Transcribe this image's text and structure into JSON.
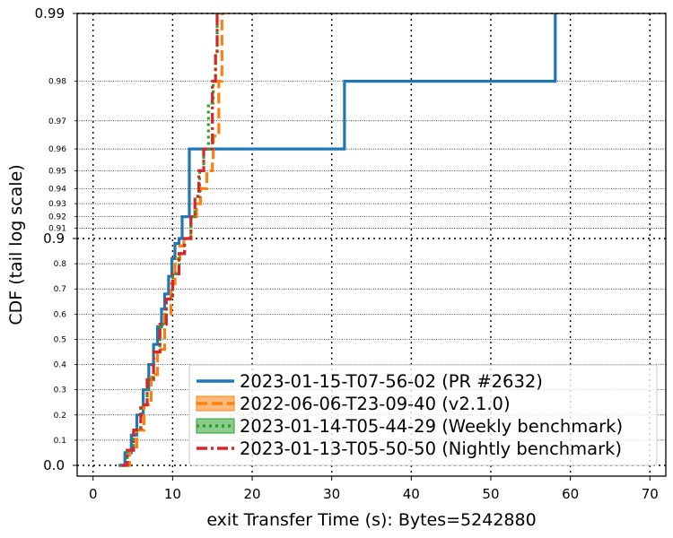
{
  "chart_data": {
    "type": "line",
    "xlabel": "exit Transfer Time (s): Bytes=5242880",
    "ylabel": "CDF (tail log scale)",
    "xlim": [
      -2,
      72
    ],
    "xticks": [
      0,
      10,
      20,
      30,
      40,
      50,
      60,
      70
    ],
    "y_scale": "tail-log (linear 0-0.9, log-of-tail 0.9-0.99)",
    "yticks_major": [
      0.0,
      0.9,
      0.99
    ],
    "yticks_minor": [
      0.1,
      0.2,
      0.3,
      0.4,
      0.5,
      0.6,
      0.7,
      0.8,
      0.91,
      0.92,
      0.93,
      0.94,
      0.95,
      0.96,
      0.97,
      0.98
    ],
    "ylim": [
      0.0,
      0.99
    ],
    "grid": true,
    "legend_position": "bottom-right",
    "series": [
      {
        "name": "2023-01-15-T07-56-02 (PR #2632)",
        "color": "#1f77b4",
        "style": "solid",
        "x": [
          3.2,
          4.0,
          4.8,
          5.5,
          6.3,
          7.0,
          7.6,
          8.1,
          8.6,
          9.0,
          9.5,
          9.9,
          10.3,
          10.8,
          11.2,
          12.0,
          12.1,
          31.5,
          31.6,
          58.0,
          58.1
        ],
        "y": [
          0.0,
          0.05,
          0.12,
          0.2,
          0.3,
          0.4,
          0.48,
          0.55,
          0.62,
          0.68,
          0.75,
          0.82,
          0.88,
          0.9,
          0.92,
          0.92,
          0.96,
          0.96,
          0.98,
          0.98,
          0.99
        ]
      },
      {
        "name": "2022-06-06-T23-09-40 (v2.1.0)",
        "color": "#ff7f0e",
        "style": "dashed",
        "x": [
          3.8,
          4.6,
          5.5,
          6.4,
          7.3,
          8.1,
          9.0,
          9.8,
          10.3,
          10.9,
          11.4,
          12.3,
          13.0,
          13.5,
          14.3,
          14.8,
          15.0,
          15.1,
          15.8,
          16.2,
          16.3
        ],
        "y": [
          0.0,
          0.06,
          0.14,
          0.24,
          0.36,
          0.46,
          0.6,
          0.72,
          0.82,
          0.87,
          0.9,
          0.92,
          0.93,
          0.94,
          0.95,
          0.95,
          0.955,
          0.965,
          0.98,
          0.99,
          0.99
        ]
      },
      {
        "name": "2023-01-14-T05-44-29 (Weekly benchmark)",
        "color": "#2ca02c",
        "style": "dotted",
        "x": [
          3.5,
          4.3,
          5.1,
          6.0,
          6.8,
          7.6,
          8.4,
          9.2,
          10.0,
          10.8,
          11.5,
          12.3,
          12.8,
          13.4,
          13.9,
          14.5,
          15.1,
          15.4,
          15.6
        ],
        "y": [
          0.0,
          0.06,
          0.14,
          0.24,
          0.34,
          0.45,
          0.56,
          0.66,
          0.76,
          0.84,
          0.9,
          0.92,
          0.935,
          0.95,
          0.96,
          0.975,
          0.98,
          0.985,
          0.99
        ]
      },
      {
        "name": "2023-01-13-T05-50-50 (Nightly benchmark)",
        "color": "#d62728",
        "style": "dashdot",
        "x": [
          3.5,
          4.3,
          5.1,
          6.0,
          6.8,
          7.6,
          8.4,
          9.2,
          10.0,
          10.8,
          11.5,
          12.3,
          12.8,
          13.3,
          13.9,
          14.3,
          15.0,
          15.4,
          15.6
        ],
        "y": [
          0.0,
          0.06,
          0.14,
          0.24,
          0.34,
          0.45,
          0.56,
          0.66,
          0.76,
          0.84,
          0.9,
          0.92,
          0.935,
          0.95,
          0.96,
          0.96,
          0.98,
          0.985,
          0.99
        ]
      }
    ]
  }
}
